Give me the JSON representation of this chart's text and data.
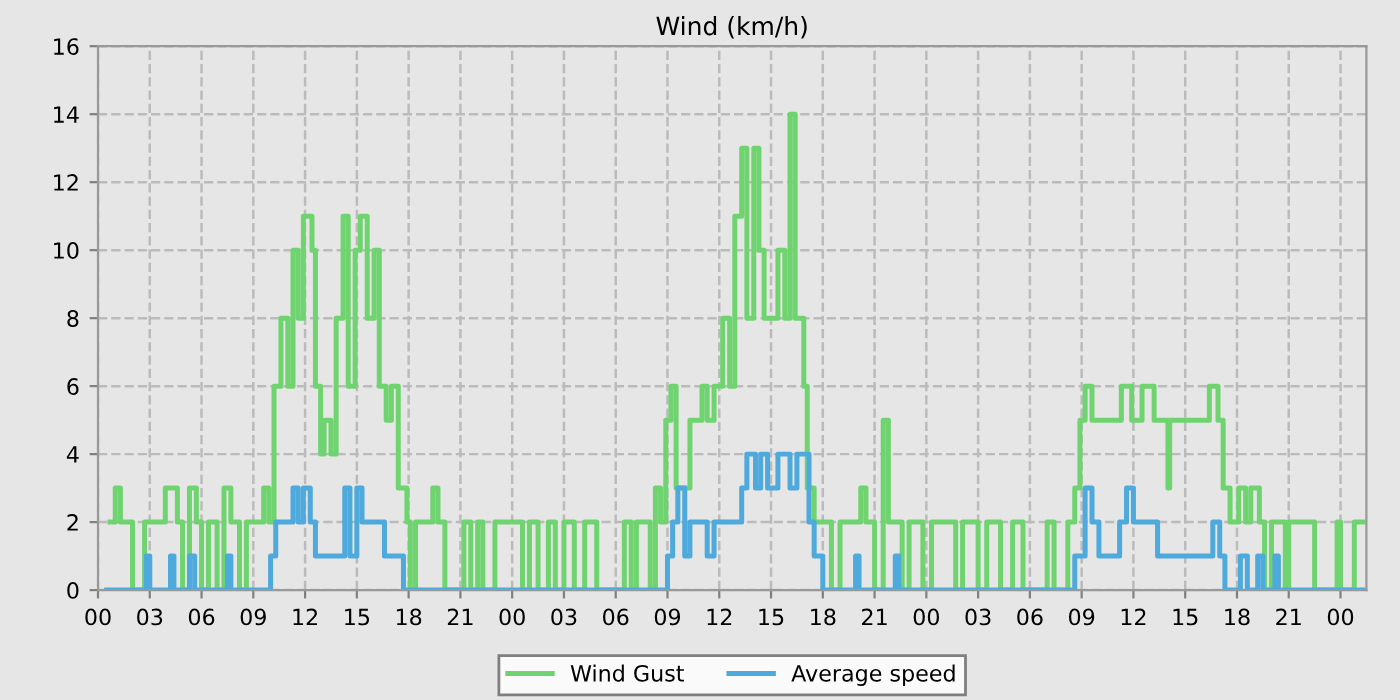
{
  "chart_data": {
    "type": "step",
    "title": "Wind (km/h)",
    "xlim": [
      0,
      73.5
    ],
    "ylim": [
      0,
      16
    ],
    "xticks": [
      {
        "value": 0,
        "label": "00"
      },
      {
        "value": 3,
        "label": "03"
      },
      {
        "value": 6,
        "label": "06"
      },
      {
        "value": 9,
        "label": "09"
      },
      {
        "value": 12,
        "label": "12"
      },
      {
        "value": 15,
        "label": "15"
      },
      {
        "value": 18,
        "label": "18"
      },
      {
        "value": 21,
        "label": "21"
      },
      {
        "value": 24,
        "label": "00"
      },
      {
        "value": 27,
        "label": "03"
      },
      {
        "value": 30,
        "label": "06"
      },
      {
        "value": 33,
        "label": "09"
      },
      {
        "value": 36,
        "label": "12"
      },
      {
        "value": 39,
        "label": "15"
      },
      {
        "value": 42,
        "label": "18"
      },
      {
        "value": 45,
        "label": "21"
      },
      {
        "value": 48,
        "label": "00"
      },
      {
        "value": 51,
        "label": "03"
      },
      {
        "value": 54,
        "label": "06"
      },
      {
        "value": 57,
        "label": "09"
      },
      {
        "value": 60,
        "label": "12"
      },
      {
        "value": 63,
        "label": "15"
      },
      {
        "value": 66,
        "label": "18"
      },
      {
        "value": 69,
        "label": "21"
      },
      {
        "value": 72,
        "label": "00"
      }
    ],
    "yticks": [
      0,
      2,
      4,
      6,
      8,
      10,
      12,
      14,
      16
    ],
    "grid": true,
    "legend": "bottom",
    "line_style": "solid",
    "series": [
      {
        "name": "Wind Gust",
        "color": "#6fd46f",
        "x": [
          0.7,
          1.0,
          1.3,
          2.0,
          2.7,
          3.9,
          4.6,
          4.9,
          5.3,
          5.7,
          6.0,
          6.4,
          6.9,
          7.3,
          7.7,
          8.2,
          8.6,
          9.6,
          9.9,
          10.2,
          10.6,
          11.0,
          11.3,
          11.6,
          11.9,
          12.4,
          12.6,
          12.9,
          13.1,
          13.5,
          13.8,
          14.2,
          14.5,
          14.9,
          15.2,
          15.6,
          16.0,
          16.3,
          16.7,
          17.0,
          17.4,
          17.9,
          18.1,
          18.4,
          19.4,
          19.7,
          20.1,
          21.2,
          21.6,
          22.0,
          22.3,
          23.0,
          24.6,
          25.0,
          25.5,
          26.1,
          26.5,
          27.0,
          27.6,
          28.2,
          28.9,
          30.5,
          30.9,
          31.2,
          32.0,
          32.3,
          32.6,
          32.9,
          33.2,
          33.5,
          34.3,
          35.0,
          35.3,
          35.7,
          36.2,
          36.6,
          36.9,
          37.3,
          37.6,
          38.0,
          38.3,
          38.6,
          39.4,
          39.8,
          40.1,
          40.4,
          40.9,
          41.1,
          41.5,
          42.5,
          43.0,
          44.2,
          44.5,
          45.0,
          45.5,
          45.8,
          46.6,
          47.0,
          47.8,
          48.3,
          49.7,
          50.1,
          51.0,
          51.5,
          52.3,
          53.0,
          53.6,
          55.0,
          55.4,
          56.2,
          56.6,
          56.9,
          57.2,
          57.6,
          59.3,
          59.9,
          60.5,
          61.2,
          62.0,
          62.1,
          64.4,
          64.9,
          65.2,
          65.6,
          66.1,
          66.5,
          66.8,
          67.3,
          67.6,
          68.0,
          68.8,
          69.0,
          70.5,
          71.8,
          72.0,
          72.8,
          73.3
        ],
        "values": [
          2,
          3,
          2,
          0,
          2,
          3,
          2,
          0,
          3,
          2,
          0,
          2,
          0,
          3,
          2,
          0,
          2,
          3,
          2,
          6,
          8,
          6,
          10,
          8,
          11,
          10,
          6,
          4,
          5,
          4,
          8,
          11,
          6,
          10,
          11,
          8,
          10,
          6,
          5,
          6,
          3,
          2,
          0,
          2,
          3,
          2,
          0,
          2,
          0,
          2,
          0,
          2,
          0,
          2,
          0,
          2,
          0,
          2,
          0,
          2,
          0,
          2,
          0,
          2,
          0,
          3,
          2,
          5,
          6,
          3,
          5,
          6,
          5,
          6,
          8,
          6,
          11,
          13,
          8,
          13,
          10,
          8,
          10,
          8,
          14,
          8,
          6,
          3,
          2,
          0,
          2,
          3,
          2,
          0,
          5,
          2,
          0,
          2,
          0,
          2,
          0,
          2,
          0,
          2,
          0,
          2,
          0,
          2,
          0,
          2,
          3,
          5,
          6,
          5,
          6,
          5,
          6,
          5,
          3,
          5,
          6,
          5,
          3,
          2,
          3,
          2,
          3,
          2,
          0,
          2,
          0,
          2,
          0,
          2,
          0,
          2,
          2
        ]
      },
      {
        "name": "Average speed",
        "color": "#4ea9dc",
        "x": [
          0.5,
          2.8,
          3.0,
          4.2,
          4.4,
          5.3,
          5.6,
          7.5,
          7.7,
          10.0,
          10.3,
          11.3,
          11.6,
          11.9,
          12.3,
          12.6,
          14.3,
          14.6,
          15.0,
          15.3,
          16.6,
          17.7,
          33.0,
          33.3,
          33.6,
          34.0,
          34.3,
          35.3,
          35.7,
          37.3,
          37.6,
          38.1,
          38.4,
          38.8,
          39.4,
          40.1,
          40.5,
          41.2,
          41.5,
          42.0,
          43.9,
          44.1,
          46.2,
          46.4,
          56.6,
          57.2,
          57.6,
          58.0,
          59.2,
          59.6,
          60.0,
          61.4,
          64.6,
          65.0,
          65.3,
          66.2,
          66.6,
          67.2,
          67.5,
          68.2,
          68.4,
          73.3
        ],
        "values": [
          0,
          1,
          0,
          1,
          0,
          1,
          0,
          1,
          0,
          1,
          2,
          3,
          2,
          3,
          2,
          1,
          3,
          1,
          3,
          2,
          1,
          0,
          1,
          2,
          3,
          1,
          2,
          1,
          2,
          3,
          4,
          3,
          4,
          3,
          4,
          3,
          4,
          2,
          1,
          0,
          1,
          0,
          1,
          0,
          1,
          3,
          2,
          1,
          2,
          3,
          2,
          1,
          2,
          1,
          0,
          1,
          0,
          1,
          0,
          1,
          0,
          0
        ]
      }
    ]
  }
}
